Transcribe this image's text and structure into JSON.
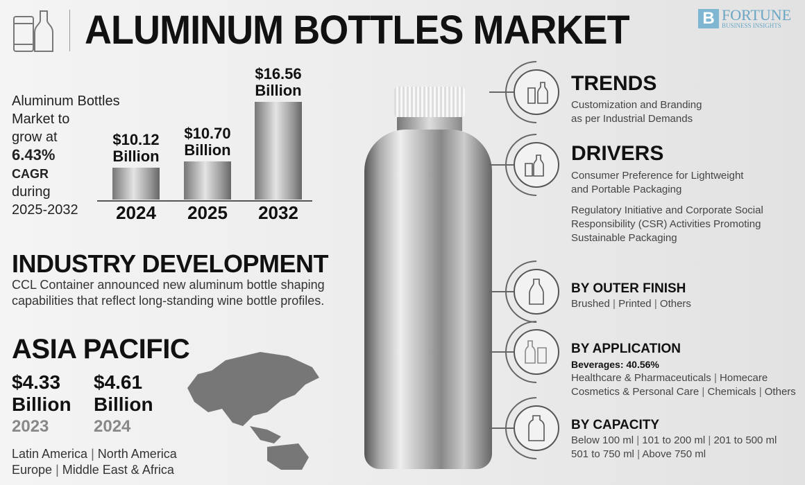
{
  "header": {
    "title": "ALUMINUM BOTTLES MARKET",
    "logo_line1": "FORTUNE",
    "logo_line2": "BUSINESS INSIGHTS"
  },
  "growth": {
    "line1": "Aluminum Bottles",
    "line2": "Market to",
    "line3": "grow at",
    "cagr": "6.43%",
    "cagr_label": "CAGR",
    "line4": "during",
    "period": "2025-2032"
  },
  "chart_data": {
    "type": "bar",
    "categories": [
      "2024",
      "2025",
      "2032"
    ],
    "values": [
      10.12,
      10.7,
      16.56
    ],
    "labels": [
      "$10.12 Billion",
      "$10.70 Billion",
      "$16.56 Billion"
    ],
    "unit": "Billion USD",
    "ylim": [
      7,
      17
    ],
    "grid": false
  },
  "chart_labels": {
    "l0a": "$10.12",
    "l0b": "Billion",
    "l1a": "$10.70",
    "l1b": "Billion",
    "l2a": "$16.56",
    "l2b": "Billion"
  },
  "industry": {
    "title": "INDUSTRY DEVELOPMENT",
    "line1": "CCL Container announced new aluminum bottle shaping",
    "line2": "capabilities that reflect long-standing wine bottle profiles."
  },
  "region": {
    "title": "ASIA PACIFIC",
    "v1": "$4.33",
    "v1u": "Billion",
    "y1": "2023",
    "v2": "$4.61",
    "v2u": "Billion",
    "y2": "2024",
    "others1": [
      "Latin America",
      "North America"
    ],
    "others2": [
      "Europe",
      "Middle East & Africa"
    ]
  },
  "trends": {
    "title": "TRENDS",
    "line1": "Customization and Branding",
    "line2": "as per Industrial Demands"
  },
  "drivers": {
    "title": "DRIVERS",
    "d1a": "Consumer Preference for Lightweight",
    "d1b": "and Portable Packaging",
    "d2a": "Regulatory Initiative and Corporate Social",
    "d2b": "Responsibility (CSR) Activities Promoting",
    "d2c": "Sustainable Packaging"
  },
  "finish": {
    "title": "BY OUTER FINISH",
    "items": [
      "Brushed",
      "Printed",
      "Others"
    ]
  },
  "application": {
    "title": "BY APPLICATION",
    "highlight": "Beverages: 40.56%",
    "row1": [
      "Healthcare & Pharmaceuticals",
      "Homecare"
    ],
    "row2": [
      "Cosmetics & Personal Care",
      "Chemicals",
      "Others"
    ]
  },
  "capacity": {
    "title": "BY CAPACITY",
    "row1": [
      "Below 100 ml",
      "101 to 200 ml",
      "201 to 500 ml"
    ],
    "row2": [
      "501 to 750 ml",
      "Above 750 ml"
    ]
  }
}
